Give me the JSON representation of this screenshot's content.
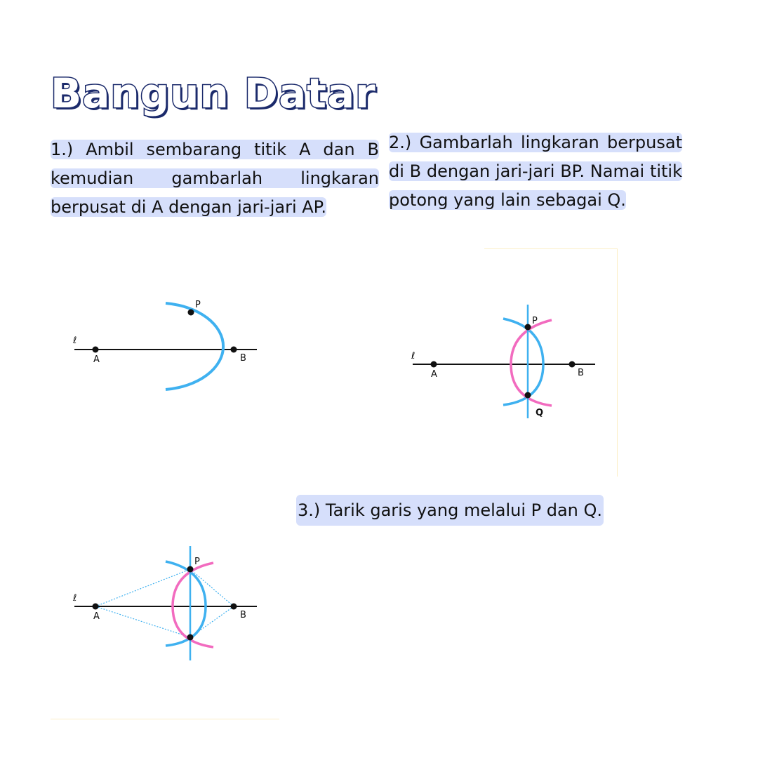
{
  "title": "Bangun Datar",
  "steps": [
    {
      "text": "1.) Ambil sembarang titik A dan B kemudian gambarlah lingkaran berpusat di A dengan jari-jari AP."
    },
    {
      "text": "2.) Gambarlah lingkaran berpusat di B dengan jari-jari BP. Namai titik potong yang lain sebagai Q."
    },
    {
      "text": "3.) Tarik garis yang melalui P dan Q."
    }
  ],
  "labels": {
    "line": "ℓ",
    "a": "A",
    "b": "B",
    "p": "P",
    "q": "Q"
  },
  "colors": {
    "title_fill": "#ffffff",
    "title_outline": "#1b2a6b",
    "highlight": "#d6dffb",
    "arc_blue": "#3fb1f0",
    "arc_pink": "#f26bbf",
    "line_black": "#111111",
    "dotted_blue": "#3fb1f0"
  }
}
